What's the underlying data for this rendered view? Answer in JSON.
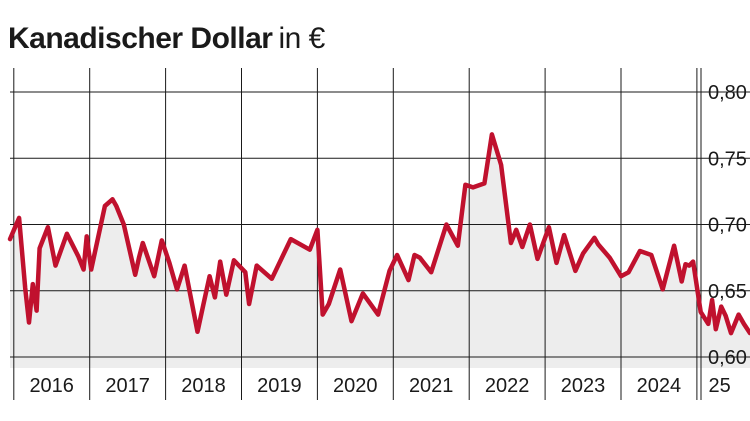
{
  "chart_data": {
    "type": "area",
    "title": "Kanadischer Dollar",
    "unit": "in €",
    "xlabel": "",
    "ylabel": "",
    "ylim": [
      0.6,
      0.8
    ],
    "yticks": [
      "0,80",
      "0,75",
      "0,70",
      "0,65",
      "0,60"
    ],
    "xlim": [
      2015.95,
      2025.7
    ],
    "xtick_labels": [
      {
        "label": "2016",
        "center": 2016.5
      },
      {
        "label": "2017",
        "center": 2017.5
      },
      {
        "label": "2018",
        "center": 2018.5
      },
      {
        "label": "2019",
        "center": 2019.5
      },
      {
        "label": "2020",
        "center": 2020.5
      },
      {
        "label": "2021",
        "center": 2021.5
      },
      {
        "label": "2022",
        "center": 2022.5
      },
      {
        "label": "2023",
        "center": 2023.5
      },
      {
        "label": "2024",
        "center": 2024.5
      },
      {
        "label": "25",
        "center": 2025.3
      }
    ],
    "year_lines": [
      2016,
      2017,
      2018,
      2019,
      2020,
      2021,
      2022,
      2023,
      2024,
      2025
    ],
    "grid": true,
    "line_color": "#c0112e",
    "fill_color": "#ededed",
    "series": [
      {
        "x": [
          2015.95,
          2016.07,
          2016.15,
          2016.2,
          2016.25,
          2016.3,
          2016.34,
          2016.45,
          2016.55,
          2016.7,
          2016.85,
          2016.92,
          2016.96,
          2017.02,
          2017.2,
          2017.3,
          2017.35,
          2017.45,
          2017.6,
          2017.65,
          2017.7,
          2017.85,
          2017.95,
          2018.05,
          2018.15,
          2018.25,
          2018.42,
          2018.5,
          2018.58,
          2018.65,
          2018.72,
          2018.8,
          2018.9,
          2019.05,
          2019.1,
          2019.2,
          2019.4,
          2019.65,
          2019.9,
          2020.0,
          2020.07,
          2020.15,
          2020.3,
          2020.45,
          2020.6,
          2020.8,
          2020.95,
          2021.05,
          2021.2,
          2021.28,
          2021.35,
          2021.5,
          2021.7,
          2021.85,
          2021.95,
          2022.05,
          2022.2,
          2022.3,
          2022.42,
          2022.55,
          2022.62,
          2022.7,
          2022.8,
          2022.9,
          2023.05,
          2023.15,
          2023.25,
          2023.4,
          2023.5,
          2023.65,
          2023.7,
          2023.85,
          2024.0,
          2024.1,
          2024.25,
          2024.4,
          2024.55,
          2024.7,
          2024.8,
          2024.85,
          2024.9,
          2024.95,
          2025.05,
          2025.15,
          2025.2,
          2025.25,
          2025.32,
          2025.38,
          2025.45,
          2025.55,
          2025.62,
          2025.7
        ],
        "y": [
          0.689,
          0.705,
          0.652,
          0.626,
          0.655,
          0.635,
          0.682,
          0.698,
          0.669,
          0.693,
          0.676,
          0.666,
          0.691,
          0.666,
          0.714,
          0.719,
          0.714,
          0.7,
          0.662,
          0.675,
          0.686,
          0.661,
          0.688,
          0.671,
          0.651,
          0.669,
          0.619,
          0.64,
          0.661,
          0.645,
          0.672,
          0.647,
          0.673,
          0.664,
          0.64,
          0.669,
          0.659,
          0.689,
          0.681,
          0.696,
          0.632,
          0.64,
          0.666,
          0.627,
          0.648,
          0.632,
          0.665,
          0.677,
          0.658,
          0.677,
          0.675,
          0.664,
          0.7,
          0.684,
          0.73,
          0.728,
          0.731,
          0.768,
          0.745,
          0.686,
          0.696,
          0.683,
          0.7,
          0.674,
          0.698,
          0.671,
          0.692,
          0.665,
          0.678,
          0.69,
          0.685,
          0.675,
          0.661,
          0.664,
          0.68,
          0.677,
          0.651,
          0.684,
          0.657,
          0.67,
          0.669,
          0.672,
          0.634,
          0.625,
          0.643,
          0.621,
          0.638,
          0.631,
          0.618,
          0.632,
          0.625,
          0.618
        ]
      }
    ]
  }
}
